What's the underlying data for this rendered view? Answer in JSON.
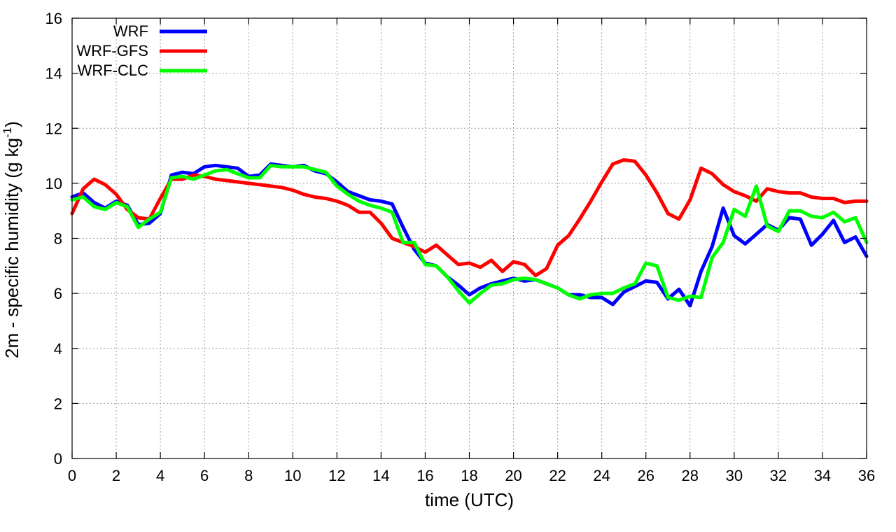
{
  "chart_data": {
    "type": "line",
    "title": "",
    "xlabel": "time (UTC)",
    "ylabel_prefix": "2m - specific humidity (g kg",
    "ylabel_sup": "-1",
    "ylabel_suffix": ")",
    "xlim": [
      0,
      36
    ],
    "ylim": [
      0,
      16
    ],
    "xticks": [
      0,
      2,
      4,
      6,
      8,
      10,
      12,
      14,
      16,
      18,
      20,
      22,
      24,
      26,
      28,
      30,
      32,
      34,
      36
    ],
    "yticks": [
      0,
      2,
      4,
      6,
      8,
      10,
      12,
      14,
      16
    ],
    "grid": true,
    "legend_position": "top-left",
    "series": [
      {
        "name": "WRF",
        "color": "#0000ff",
        "x": [
          0,
          0.5,
          1,
          1.5,
          2,
          2.5,
          3,
          3.5,
          4,
          4.5,
          5,
          5.5,
          6,
          6.5,
          7,
          7.5,
          8,
          8.5,
          9,
          9.5,
          10,
          10.5,
          11,
          11.5,
          12,
          12.5,
          13,
          13.5,
          14,
          14.5,
          15,
          15.5,
          16,
          16.5,
          17,
          17.5,
          18,
          18.5,
          19,
          19.5,
          20,
          20.5,
          21,
          21.5,
          22,
          22.5,
          23,
          23.5,
          24,
          24.5,
          25,
          25.5,
          26,
          26.5,
          27,
          27.5,
          28,
          28.5,
          29,
          29.5,
          30,
          30.5,
          31,
          31.5,
          32,
          32.5,
          33,
          33.5,
          34,
          34.5,
          35,
          35.5,
          36
        ],
        "values": [
          9.5,
          9.65,
          9.3,
          9.1,
          9.35,
          9.2,
          8.5,
          8.55,
          8.9,
          10.3,
          10.4,
          10.35,
          10.6,
          10.65,
          10.6,
          10.55,
          10.25,
          10.3,
          10.7,
          10.65,
          10.6,
          10.65,
          10.45,
          10.35,
          10.05,
          9.7,
          9.55,
          9.4,
          9.35,
          9.25,
          8.4,
          7.6,
          7.1,
          7.0,
          6.6,
          6.3,
          5.95,
          6.2,
          6.35,
          6.45,
          6.55,
          6.45,
          6.5,
          6.35,
          6.2,
          5.95,
          5.95,
          5.85,
          5.85,
          5.6,
          6.05,
          6.25,
          6.45,
          6.4,
          5.8,
          6.15,
          5.55,
          6.8,
          7.7,
          9.1,
          8.1,
          7.8,
          8.15,
          8.5,
          8.3,
          8.75,
          8.7,
          7.75,
          8.15,
          8.65,
          7.85,
          8.05,
          7.35
        ]
      },
      {
        "name": "WRF-GFS",
        "color": "#ff0000",
        "x": [
          0,
          0.5,
          1,
          1.5,
          2,
          2.5,
          3,
          3.5,
          4,
          4.5,
          5,
          5.5,
          6,
          6.5,
          7,
          7.5,
          8,
          8.5,
          9,
          9.5,
          10,
          10.5,
          11,
          11.5,
          12,
          12.5,
          13,
          13.5,
          14,
          14.5,
          15,
          15.5,
          16,
          16.5,
          17,
          17.5,
          18,
          18.5,
          19,
          19.5,
          20,
          20.5,
          21,
          21.5,
          22,
          22.5,
          23,
          23.5,
          24,
          24.5,
          25,
          25.5,
          26,
          26.5,
          27,
          27.5,
          28,
          28.5,
          29,
          29.5,
          30,
          30.5,
          31,
          31.5,
          32,
          32.5,
          33,
          33.5,
          34,
          34.5,
          35,
          35.5,
          36
        ],
        "values": [
          8.9,
          9.8,
          10.15,
          9.95,
          9.6,
          9.05,
          8.75,
          8.7,
          9.45,
          10.15,
          10.15,
          10.3,
          10.25,
          10.15,
          10.1,
          10.05,
          10.0,
          9.95,
          9.9,
          9.85,
          9.75,
          9.6,
          9.5,
          9.45,
          9.35,
          9.2,
          8.95,
          8.95,
          8.55,
          8.0,
          7.85,
          7.7,
          7.5,
          7.75,
          7.4,
          7.05,
          7.1,
          6.95,
          7.2,
          6.8,
          7.15,
          7.05,
          6.65,
          6.9,
          7.75,
          8.1,
          8.7,
          9.35,
          10.05,
          10.7,
          10.85,
          10.8,
          10.3,
          9.65,
          8.9,
          8.7,
          9.4,
          10.55,
          10.35,
          9.95,
          9.7,
          9.55,
          9.35,
          9.8,
          9.7,
          9.65,
          9.65,
          9.5,
          9.45,
          9.45,
          9.3,
          9.35,
          9.35
        ]
      },
      {
        "name": "WRF-CLC",
        "color": "#00ff00",
        "x": [
          0,
          0.5,
          1,
          1.5,
          2,
          2.5,
          3,
          3.5,
          4,
          4.5,
          5,
          5.5,
          6,
          6.5,
          7,
          7.5,
          8,
          8.5,
          9,
          9.5,
          10,
          10.5,
          11,
          11.5,
          12,
          12.5,
          13,
          13.5,
          14,
          14.5,
          15,
          15.5,
          16,
          16.5,
          17,
          17.5,
          18,
          18.5,
          19,
          19.5,
          20,
          20.5,
          21,
          21.5,
          22,
          22.5,
          23,
          23.5,
          24,
          24.5,
          25,
          25.5,
          26,
          26.5,
          27,
          27.5,
          28,
          28.5,
          29,
          29.5,
          30,
          30.5,
          31,
          31.5,
          32,
          32.5,
          33,
          33.5,
          34,
          34.5,
          35,
          35.5,
          36
        ],
        "values": [
          9.4,
          9.5,
          9.15,
          9.05,
          9.3,
          9.15,
          8.4,
          8.7,
          8.95,
          10.2,
          10.25,
          10.15,
          10.3,
          10.45,
          10.5,
          10.35,
          10.2,
          10.2,
          10.65,
          10.6,
          10.6,
          10.6,
          10.5,
          10.4,
          9.9,
          9.6,
          9.35,
          9.2,
          9.1,
          8.95,
          7.85,
          7.85,
          7.05,
          7.0,
          6.6,
          6.1,
          5.65,
          6.0,
          6.3,
          6.35,
          6.5,
          6.55,
          6.5,
          6.35,
          6.2,
          5.95,
          5.8,
          5.95,
          6.0,
          6.0,
          6.2,
          6.35,
          7.1,
          7.0,
          5.85,
          5.75,
          5.9,
          5.85,
          7.3,
          7.85,
          9.05,
          8.8,
          9.9,
          8.45,
          8.25,
          9.0,
          9.0,
          8.8,
          8.75,
          8.95,
          8.6,
          8.75,
          7.85
        ]
      }
    ]
  }
}
